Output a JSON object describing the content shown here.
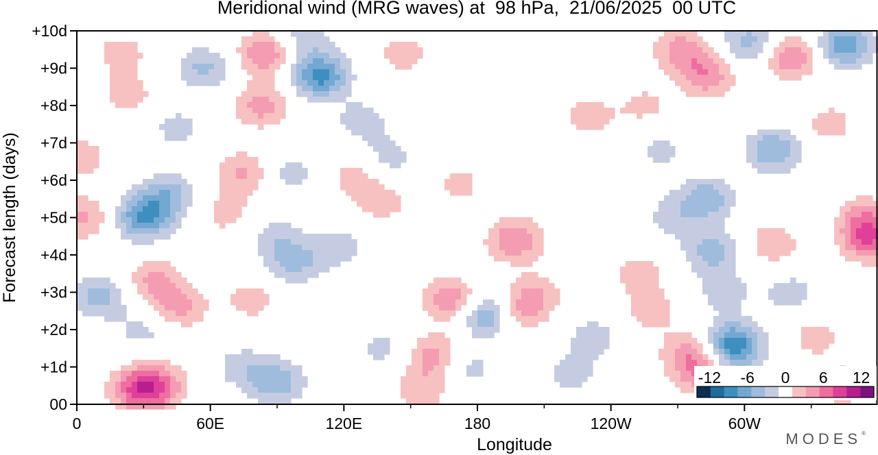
{
  "title": "Meridional wind (MRG waves) at  98 hPa,  21/06/2025  00 UTC",
  "brand": "MODES",
  "brand_mark": "®",
  "chart_data": {
    "type": "heatmap",
    "title": "Meridional wind (MRG waves) at  98 hPa,  21/06/2025  00 UTC",
    "xlabel": "Longitude",
    "ylabel": "Forecast length (days)",
    "x_ticks": [
      {
        "lon": 0,
        "label": "0"
      },
      {
        "lon": 60,
        "label": "60E"
      },
      {
        "lon": 120,
        "label": "120E"
      },
      {
        "lon": 180,
        "label": "180"
      },
      {
        "lon": 240,
        "label": "120W"
      },
      {
        "lon": 300,
        "label": "60W"
      }
    ],
    "x_minor_ticks": [
      30,
      90,
      150,
      210,
      270,
      330
    ],
    "xlim": [
      0,
      360
    ],
    "y_ticks": [
      {
        "day": 0,
        "label": "00"
      },
      {
        "day": 1,
        "label": "+1d"
      },
      {
        "day": 2,
        "label": "+2d"
      },
      {
        "day": 3,
        "label": "+3d"
      },
      {
        "day": 4,
        "label": "+4d"
      },
      {
        "day": 5,
        "label": "+5d"
      },
      {
        "day": 6,
        "label": "+6d"
      },
      {
        "day": 7,
        "label": "+7d"
      },
      {
        "day": 8,
        "label": "+8d"
      },
      {
        "day": 9,
        "label": "+9d"
      },
      {
        "day": 10,
        "label": "+10d"
      }
    ],
    "ylim": [
      0,
      10
    ],
    "colorbar": {
      "levels": [
        -14,
        -12,
        -10,
        -8,
        -6,
        -4,
        -2,
        2,
        4,
        6,
        8,
        10,
        12,
        14
      ],
      "colors": [
        "#0e2d52",
        "#1f6b9c",
        "#3d8fbf",
        "#73a8d2",
        "#9fbcdc",
        "#c5cce2",
        "#ffffff",
        "#f7c1c1",
        "#f49cb2",
        "#ee6ea0",
        "#e0409a",
        "#b81e8e",
        "#7e137f"
      ],
      "tick_labels": [
        {
          "value": -12,
          "label": "-12"
        },
        {
          "value": -6,
          "label": "-6"
        },
        {
          "value": 0,
          "label": "0"
        },
        {
          "value": 6,
          "label": "6"
        },
        {
          "value": 12,
          "label": "12"
        }
      ]
    },
    "features": [
      {
        "lon": 20,
        "day": 9.4,
        "v": 3.0
      },
      {
        "lon": 23,
        "day": 8.3,
        "v": 3.0
      },
      {
        "lon": 2,
        "day": 6.6,
        "v": 3.2
      },
      {
        "lon": 3,
        "day": 5.0,
        "v": 4.5
      },
      {
        "lon": 30,
        "day": 5.0,
        "v": -8.0
      },
      {
        "lon": 41,
        "day": 5.6,
        "v": -5.0
      },
      {
        "lon": 45,
        "day": 7.4,
        "v": -2.8
      },
      {
        "lon": 57,
        "day": 9.0,
        "v": -4.5
      },
      {
        "lon": 75,
        "day": 6.2,
        "v": 4.5
      },
      {
        "lon": 67,
        "day": 5.1,
        "v": 2.8
      },
      {
        "lon": 85,
        "day": 9.4,
        "v": 6.5
      },
      {
        "lon": 83,
        "day": 8.0,
        "v": 5.0
      },
      {
        "lon": 109,
        "day": 8.8,
        "v": -9.0
      },
      {
        "lon": 101,
        "day": 9.8,
        "v": -3.5
      },
      {
        "lon": 128,
        "day": 7.6,
        "v": -3.0
      },
      {
        "lon": 140,
        "day": 6.6,
        "v": -3.0
      },
      {
        "lon": 96,
        "day": 6.2,
        "v": -3.0
      },
      {
        "lon": 89,
        "day": 4.5,
        "v": -3.0
      },
      {
        "lon": 98,
        "day": 3.8,
        "v": -4.5
      },
      {
        "lon": 118,
        "day": 4.2,
        "v": -3.0
      },
      {
        "lon": 125,
        "day": 6.1,
        "v": 3.0
      },
      {
        "lon": 137,
        "day": 5.4,
        "v": 3.0
      },
      {
        "lon": 147,
        "day": 9.4,
        "v": 3.0
      },
      {
        "lon": 172,
        "day": 5.9,
        "v": 2.6
      },
      {
        "lon": 161,
        "day": 1.3,
        "v": 5.0
      },
      {
        "lon": 168,
        "day": 2.8,
        "v": 6.0
      },
      {
        "lon": 155,
        "day": 0.4,
        "v": 3.5
      },
      {
        "lon": 185,
        "day": 2.4,
        "v": -7.0
      },
      {
        "lon": 176,
        "day": 1.0,
        "v": -3.0
      },
      {
        "lon": 197,
        "day": 4.4,
        "v": 6.0
      },
      {
        "lon": 198,
        "day": 2.5,
        "v": 5.0
      },
      {
        "lon": 207,
        "day": 3.0,
        "v": 3.0
      },
      {
        "lon": 222,
        "day": 0.8,
        "v": -3.0
      },
      {
        "lon": 232,
        "day": 1.8,
        "v": -3.0
      },
      {
        "lon": 230,
        "day": 7.7,
        "v": 3.0
      },
      {
        "lon": 253,
        "day": 3.5,
        "v": 3.0
      },
      {
        "lon": 258,
        "day": 2.5,
        "v": 3.0
      },
      {
        "lon": 275,
        "day": 1.4,
        "v": 4.5
      },
      {
        "lon": 282,
        "day": 0.8,
        "v": 6.5
      },
      {
        "lon": 293,
        "day": 0.6,
        "v": -5.0
      },
      {
        "lon": 295,
        "day": 1.6,
        "v": -9.5
      },
      {
        "lon": 291,
        "day": 3.0,
        "v": -3.0
      },
      {
        "lon": 283,
        "day": 5.5,
        "v": -5.5
      },
      {
        "lon": 285,
        "day": 4.1,
        "v": -5.0
      },
      {
        "lon": 267,
        "day": 5.0,
        "v": -2.8
      },
      {
        "lon": 262,
        "day": 6.8,
        "v": -2.6
      },
      {
        "lon": 313,
        "day": 6.8,
        "v": -6.0
      },
      {
        "lon": 322,
        "day": 5.0,
        "v": -3.0
      },
      {
        "lon": 320,
        "day": 3.0,
        "v": -3.0
      },
      {
        "lon": 317,
        "day": 4.8,
        "v": 2.8
      },
      {
        "lon": 338,
        "day": 7.5,
        "v": 3.0
      },
      {
        "lon": 354,
        "day": 5.0,
        "v": 4.5
      },
      {
        "lon": 356,
        "day": 4.4,
        "v": 7.0
      },
      {
        "lon": 321,
        "day": 9.3,
        "v": 6.0
      },
      {
        "lon": 272,
        "day": 9.5,
        "v": 5.0
      },
      {
        "lon": 283,
        "day": 8.8,
        "v": 5.5
      },
      {
        "lon": 302,
        "day": 9.7,
        "v": -5.0
      },
      {
        "lon": 345,
        "day": 9.6,
        "v": -7.5
      },
      {
        "lon": 345,
        "day": 0.5,
        "v": 3.5
      },
      {
        "lon": 332,
        "day": 1.8,
        "v": 3.0
      },
      {
        "lon": 35,
        "day": 3.3,
        "v": 4.5
      },
      {
        "lon": 46,
        "day": 2.6,
        "v": 4.5
      },
      {
        "lon": 28,
        "day": 0.4,
        "v": 7.5
      },
      {
        "lon": 37,
        "day": 0.5,
        "v": 5.0
      },
      {
        "lon": 10,
        "day": 2.9,
        "v": -5.0
      },
      {
        "lon": 30,
        "day": 2.0,
        "v": -2.8
      },
      {
        "lon": 90,
        "day": 0.6,
        "v": -5.5
      },
      {
        "lon": 74,
        "day": 1.0,
        "v": -3.0
      },
      {
        "lon": 78,
        "day": 2.8,
        "v": 3.0
      },
      {
        "lon": 137,
        "day": 1.5,
        "v": -2.6
      },
      {
        "lon": 255,
        "day": 8.0,
        "v": 2.6
      },
      {
        "lon": 313,
        "day": 4.2,
        "v": 2.8
      }
    ]
  }
}
